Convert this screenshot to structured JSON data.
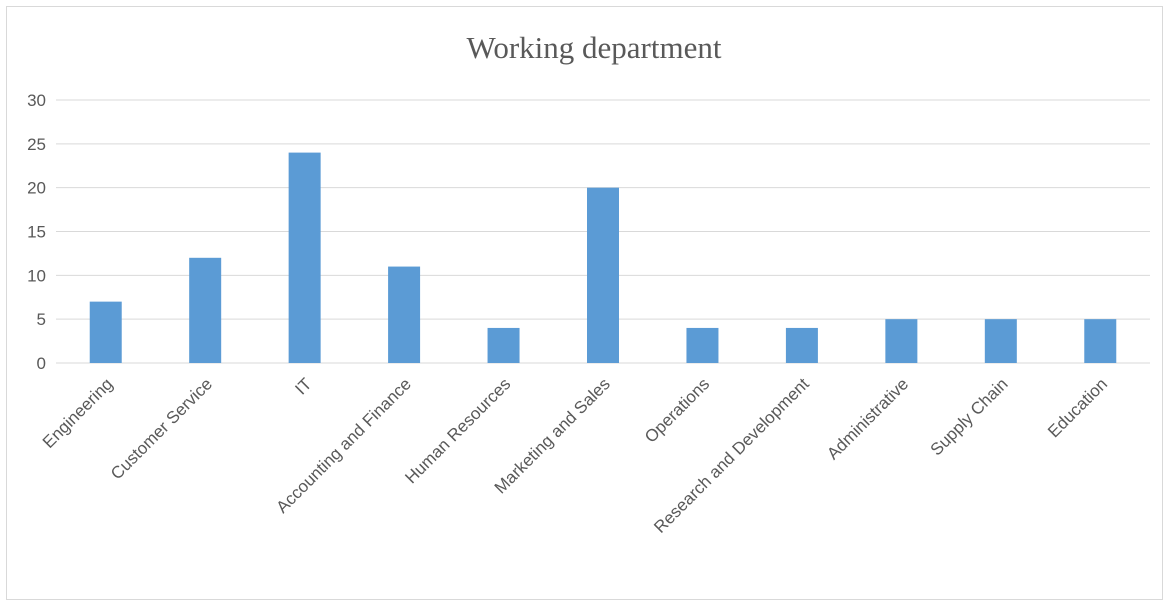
{
  "chart_data": {
    "type": "bar",
    "title": "Working department",
    "xlabel": "",
    "ylabel": "",
    "categories": [
      "Engineering",
      "Customer Service",
      "IT",
      "Accounting and Finance",
      "Human Resources",
      "Marketing and Sales",
      "Operations",
      "Research and Development",
      "Administrative",
      "Supply Chain",
      "Education"
    ],
    "values": [
      7,
      12,
      24,
      11,
      4,
      20,
      4,
      4,
      5,
      5,
      5
    ],
    "ylim": [
      0,
      30
    ],
    "yticks": [
      0,
      5,
      10,
      15,
      20,
      25,
      30
    ],
    "grid": true,
    "legend": "none",
    "bar_color": "#5b9bd5",
    "grid_color": "#d9d9d9",
    "text_color": "#595959"
  }
}
